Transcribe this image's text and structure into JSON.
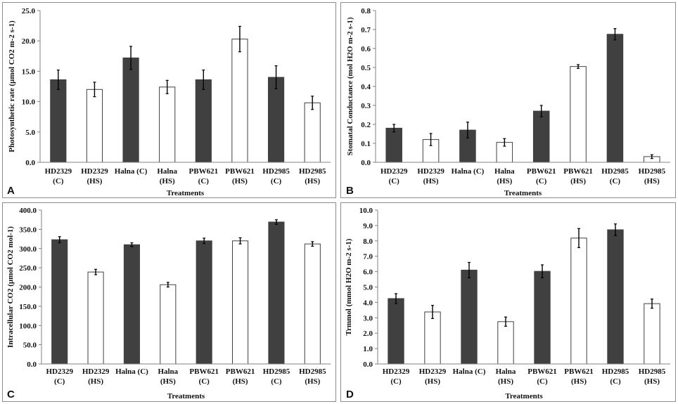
{
  "chart_data": [
    {
      "panel_label": "A",
      "type": "bar",
      "categories": [
        "HD2329|(C)",
        "HD2329|(HS)",
        "Halna (C)",
        "Halna|(HS)",
        "PBW621|(C)",
        "PBW621|(HS)",
        "HD2985|(C)",
        "HD2985|(HS)"
      ],
      "values": [
        13.6,
        12.0,
        17.2,
        12.4,
        13.6,
        20.3,
        14.0,
        9.8
      ],
      "errors": [
        1.6,
        1.2,
        1.9,
        1.1,
        1.6,
        2.1,
        1.9,
        1.1
      ],
      "bar_colors": [
        "#404040",
        "#ffffff",
        "#404040",
        "#ffffff",
        "#404040",
        "#ffffff",
        "#404040",
        "#ffffff"
      ],
      "ylim": [
        0,
        25
      ],
      "yticks": [
        0,
        5,
        10,
        15,
        20,
        25
      ],
      "tick_decimals": 1,
      "ylabel": "Photosynthetic rate (µmol CO2 m-2 s-1)",
      "xlabel": "Treatments"
    },
    {
      "panel_label": "B",
      "type": "bar",
      "categories": [
        "HD2329|(C)",
        "HD2329|(HS)",
        "Halna (C)",
        "Halna|(HS)",
        "PBW621|(C)",
        "PBW621|(HS)",
        "HD2985|(C)",
        "HD2985|(HS)"
      ],
      "values": [
        0.18,
        0.12,
        0.17,
        0.105,
        0.27,
        0.505,
        0.675,
        0.03
      ],
      "errors": [
        0.02,
        0.032,
        0.042,
        0.02,
        0.03,
        0.01,
        0.03,
        0.01
      ],
      "bar_colors": [
        "#404040",
        "#ffffff",
        "#404040",
        "#ffffff",
        "#404040",
        "#ffffff",
        "#404040",
        "#ffffff"
      ],
      "ylim": [
        0,
        0.8
      ],
      "yticks": [
        0,
        0.1,
        0.2,
        0.3,
        0.4,
        0.5,
        0.6,
        0.7,
        0.8
      ],
      "tick_decimals": 1,
      "ylabel": "Stomatal Conductance (mol H2O m-2 s-1)",
      "xlabel": "Treatments"
    },
    {
      "panel_label": "C",
      "type": "bar",
      "categories": [
        "HD2329|(C)",
        "HD2329|(HS)",
        "Halna (C)",
        "Halna|(HS)",
        "PBW621|(C)",
        "PBW621|(HS)",
        "HD2985|(C)",
        "HD2985|(HS)"
      ],
      "values": [
        323,
        239,
        310,
        206,
        320,
        320,
        369,
        312
      ],
      "errors": [
        8,
        7,
        5,
        6,
        7,
        8,
        6,
        6
      ],
      "bar_colors": [
        "#404040",
        "#ffffff",
        "#404040",
        "#ffffff",
        "#404040",
        "#ffffff",
        "#404040",
        "#ffffff"
      ],
      "ylim": [
        0,
        400
      ],
      "yticks": [
        0,
        50,
        100,
        150,
        200,
        250,
        300,
        350,
        400
      ],
      "tick_decimals": 1,
      "ylabel": "Intracellular CO2 (µmol CO2 mol-1)",
      "xlabel": "Treatments"
    },
    {
      "panel_label": "D",
      "type": "bar",
      "categories": [
        "HD2329|(C)",
        "HD2329|(HS)",
        "Halna (C)",
        "Halna|(HS)",
        "PBW621|(C)",
        "PBW621|(HS)",
        "HD2985|(C)",
        "HD2985|(HS)"
      ],
      "values": [
        4.25,
        3.38,
        6.1,
        2.75,
        6.02,
        8.18,
        8.72,
        3.92
      ],
      "errors": [
        0.32,
        0.43,
        0.5,
        0.3,
        0.42,
        0.62,
        0.38,
        0.3
      ],
      "bar_colors": [
        "#404040",
        "#ffffff",
        "#404040",
        "#ffffff",
        "#404040",
        "#ffffff",
        "#404040",
        "#ffffff"
      ],
      "ylim": [
        0,
        10
      ],
      "yticks": [
        0,
        1,
        2,
        3,
        4,
        5,
        6,
        7,
        8,
        9,
        10
      ],
      "tick_decimals": 1,
      "ylabel": "Trmmol (mmol H2O m-2 s-1)",
      "xlabel": "Treatments"
    }
  ]
}
